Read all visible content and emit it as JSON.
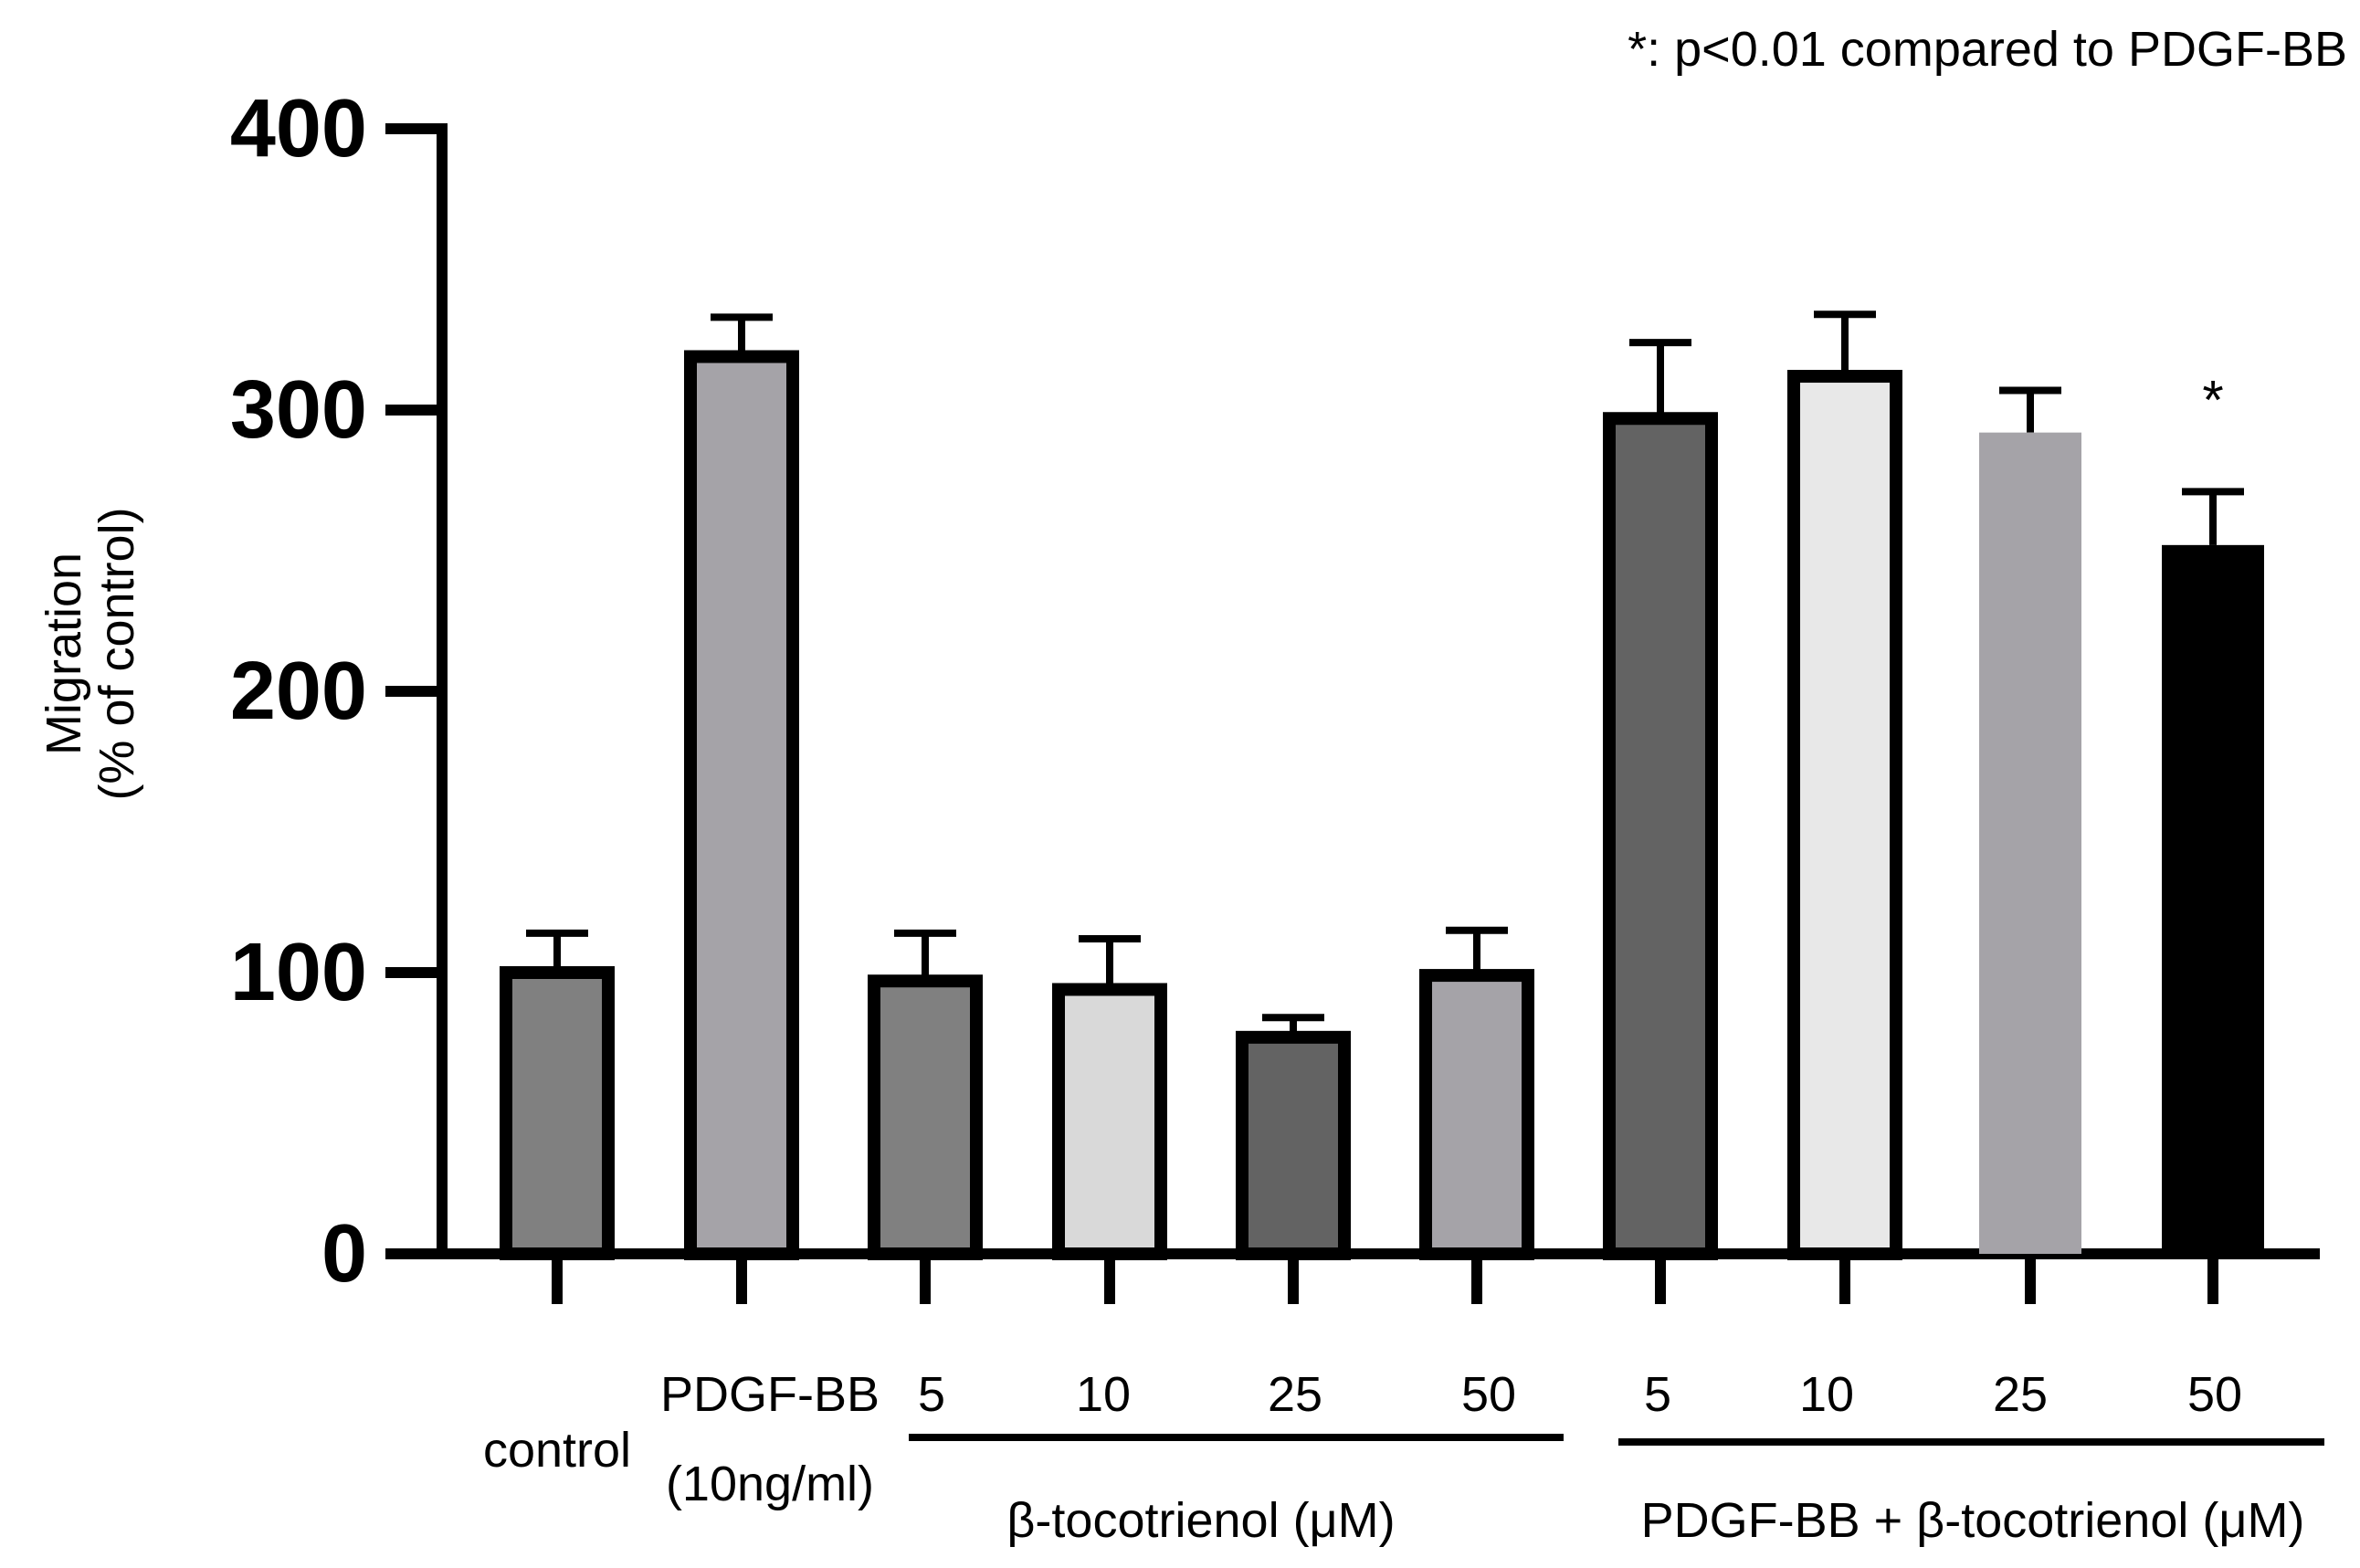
{
  "chart_data": {
    "type": "bar",
    "title": "",
    "annotation": "*: p<0.01 compared to PDGF-BB",
    "ylabel": [
      "Migration",
      "(% of control)"
    ],
    "xlabel": "",
    "ylim": [
      0,
      400
    ],
    "yticks": [
      "0",
      "100",
      "200",
      "300",
      "400"
    ],
    "grid": false,
    "bars": [
      {
        "label": "control",
        "value": 100,
        "error": 14,
        "fill": "#808080",
        "outlined": true,
        "significance": ""
      },
      {
        "label": "PDGF-BB (10ng/ml)",
        "value": 319,
        "error": 14,
        "fill": "#a5a3a8",
        "outlined": true,
        "significance": ""
      },
      {
        "label": "5",
        "value": 97,
        "error": 17,
        "fill": "#808080",
        "outlined": true,
        "significance": ""
      },
      {
        "label": "10",
        "value": 94,
        "error": 18,
        "fill": "#d9d9d9",
        "outlined": true,
        "significance": ""
      },
      {
        "label": "25",
        "value": 77,
        "error": 7,
        "fill": "#636363",
        "outlined": true,
        "significance": ""
      },
      {
        "label": "50",
        "value": 99,
        "error": 16,
        "fill": "#a5a3a8",
        "outlined": true,
        "significance": ""
      },
      {
        "label": "5",
        "value": 297,
        "error": 27,
        "fill": "#636363",
        "outlined": true,
        "significance": ""
      },
      {
        "label": "10",
        "value": 312,
        "error": 22,
        "fill": "#e8e8e8",
        "outlined": true,
        "significance": ""
      },
      {
        "label": "25",
        "value": 292,
        "error": 15,
        "fill": "#a5a3a8",
        "outlined": false,
        "significance": ""
      },
      {
        "label": "50",
        "value": 252,
        "error": 19,
        "fill": "#000000",
        "outlined": false,
        "significance": "*"
      }
    ],
    "category_labels": {
      "control": "control",
      "pdgf_line1": "PDGF-BB",
      "pdgf_line2": "(10ng/ml)"
    },
    "groups": [
      {
        "label": "β-tocotrienol (μM)",
        "doses": [
          "5",
          "10",
          "25",
          "50"
        ]
      },
      {
        "label": "PDGF-BB + β-tocotrienol (μM)",
        "doses": [
          "5",
          "10",
          "25",
          "50"
        ]
      }
    ]
  }
}
